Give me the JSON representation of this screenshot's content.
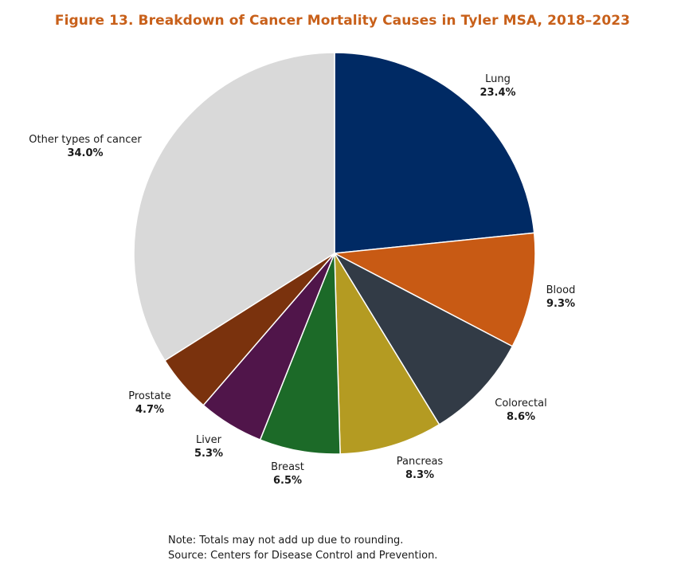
{
  "title": "Figure 13. Breakdown of Cancer Mortality Causes in Tyler MSA, 2018–2023",
  "chart_data": {
    "type": "pie",
    "title": "Figure 13. Breakdown of Cancer Mortality Causes in Tyler MSA, 2018–2023",
    "start_angle_deg": 0,
    "direction": "clockwise",
    "slices": [
      {
        "label": "Lung",
        "value": 23.4,
        "display": "23.4%",
        "color": "#002a64"
      },
      {
        "label": "Blood",
        "value": 9.3,
        "display": "9.3%",
        "color": "#c85a14"
      },
      {
        "label": "Colorectal",
        "value": 8.6,
        "display": "8.6%",
        "color": "#323b46"
      },
      {
        "label": "Pancreas",
        "value": 8.3,
        "display": "8.3%",
        "color": "#b49b22"
      },
      {
        "label": "Breast",
        "value": 6.5,
        "display": "6.5%",
        "color": "#1c6a28"
      },
      {
        "label": "Liver",
        "value": 5.3,
        "display": "5.3%",
        "color": "#50154a"
      },
      {
        "label": "Prostate",
        "value": 4.7,
        "display": "4.7%",
        "color": "#7a320d"
      },
      {
        "label": "Other types of cancer",
        "value": 34.0,
        "display": "34.0%",
        "color": "#d9d9d9"
      }
    ]
  },
  "notes": {
    "note": "Note: Totals may not add up due to rounding.",
    "source": "Source: Centers for Disease Control and Prevention."
  }
}
